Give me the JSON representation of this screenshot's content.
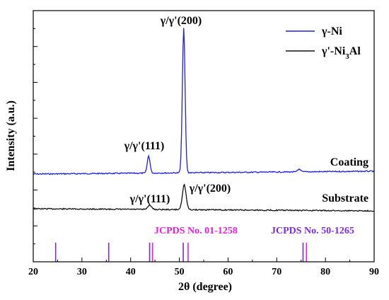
{
  "chart_data": {
    "type": "line",
    "xlabel": "2θ (degree)",
    "ylabel": "Intensity (a.u.)",
    "xlim": [
      20,
      90
    ],
    "xticks": [
      20,
      30,
      40,
      50,
      60,
      70,
      80,
      90
    ],
    "yticks_labeled": false,
    "grid": false,
    "legend_position": "top-right",
    "legend": [
      {
        "name": "γ-Ni",
        "color": "#1f1fe6"
      },
      {
        "name": "γ'-Ni3Al",
        "color": "#111111"
      }
    ],
    "series": [
      {
        "name": "Coating",
        "label": "Coating",
        "color": "#1f1fe6",
        "peaks": [
          {
            "x": 43.7,
            "height": 0.12,
            "label": "γ/γ'(111)"
          },
          {
            "x": 50.9,
            "height": 1.0,
            "label": "γ/γ'(200)"
          },
          {
            "x": 74.6,
            "height": 0.02,
            "label": ""
          }
        ]
      },
      {
        "name": "Substrate",
        "label": "Substrate",
        "color": "#111111",
        "peaks": [
          {
            "x": 43.9,
            "height": 0.04,
            "label": "γ/γ'(111)"
          },
          {
            "x": 51.0,
            "height": 0.22,
            "label": "γ/γ'(200)"
          }
        ]
      }
    ],
    "reference_patterns": [
      {
        "label": "JCPDS No. 01-1258",
        "color": "#e91ee0",
        "positions": [
          44.5,
          51.8,
          76.1
        ]
      },
      {
        "label": "JCPDS No. 50-1265",
        "color": "#7a2be0",
        "positions": [
          24.6,
          35.5,
          43.9,
          50.8,
          75.4
        ]
      }
    ]
  }
}
